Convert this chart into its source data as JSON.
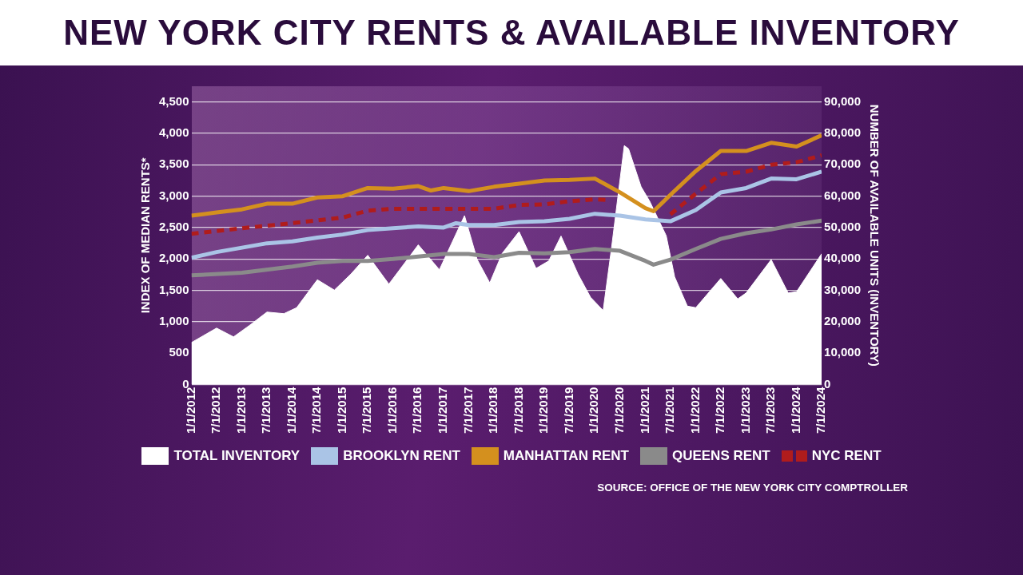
{
  "chart_data": {
    "type": "line",
    "title": "NEW YORK CITY RENTS & AVAILABLE INVENTORY",
    "ylabel": "INDEX OF MEDIAN RENTS*",
    "y2label": "NUMBER OF AVAILABLE UNITS (INVENTORY)",
    "annotations": [
      "SOURCE: OFFICE OF THE NEW YORK CITY COMPTROLLER"
    ],
    "xlim": [
      "2012-01",
      "2024-07"
    ],
    "xticks": [
      {
        "value": "2012-01",
        "label": "1/1/2012"
      },
      {
        "value": "2012-07",
        "label": "7/1/2012"
      },
      {
        "value": "2013-01",
        "label": "1/1/2013"
      },
      {
        "value": "2013-07",
        "label": "7/1/2013"
      },
      {
        "value": "2014-01",
        "label": "1/1/2014"
      },
      {
        "value": "2014-07",
        "label": "7/1/2014"
      },
      {
        "value": "2015-01",
        "label": "1/1/2015"
      },
      {
        "value": "2015-07",
        "label": "7/1/2015"
      },
      {
        "value": "2016-01",
        "label": "1/1/2016"
      },
      {
        "value": "2016-07",
        "label": "7/1/2016"
      },
      {
        "value": "2017-01",
        "label": "1/1/2017"
      },
      {
        "value": "2017-07",
        "label": "7/1/2017"
      },
      {
        "value": "2018-01",
        "label": "1/1/2018"
      },
      {
        "value": "2018-07",
        "label": "7/1/2018"
      },
      {
        "value": "2019-01",
        "label": "1/1/2019"
      },
      {
        "value": "2019-07",
        "label": "7/1/2019"
      },
      {
        "value": "2020-01",
        "label": "1/1/2020"
      },
      {
        "value": "2020-07",
        "label": "7/1/2020"
      },
      {
        "value": "2021-01",
        "label": "1/1/2021"
      },
      {
        "value": "2021-07",
        "label": "7/1/2021"
      },
      {
        "value": "2022-01",
        "label": "1/1/2022"
      },
      {
        "value": "2022-07",
        "label": "7/1/2022"
      },
      {
        "value": "2023-01",
        "label": "1/1/2023"
      },
      {
        "value": "2023-07",
        "label": "7/1/2023"
      },
      {
        "value": "2024-01",
        "label": "1/1/2024"
      },
      {
        "value": "2024-07",
        "label": "7/1/2024"
      }
    ],
    "ylim": [
      0,
      4750
    ],
    "yticks": [
      0,
      500,
      {
        "value": 1000,
        "label": "1,000"
      },
      {
        "value": 1500,
        "label": "1,500"
      },
      {
        "value": 2000,
        "label": "2,000"
      },
      {
        "value": 2500,
        "label": "2,500"
      },
      {
        "value": 3000,
        "label": "3,000"
      },
      {
        "value": 3500,
        "label": "3,500"
      },
      {
        "value": 4000,
        "label": "4,000"
      },
      {
        "value": 4500,
        "label": "4,500"
      }
    ],
    "y2lim": [
      0,
      95000
    ],
    "y2ticks": [
      0,
      {
        "value": 10000,
        "label": "10,000"
      },
      {
        "value": 20000,
        "label": "20,000"
      },
      {
        "value": 30000,
        "label": "30,000"
      },
      {
        "value": 40000,
        "label": "40,000"
      },
      {
        "value": 50000,
        "label": "50,000"
      },
      {
        "value": 60000,
        "label": "60,000"
      },
      {
        "value": 70000,
        "label": "70,000"
      },
      {
        "value": 80000,
        "label": "80,000"
      },
      {
        "value": 90000,
        "label": "90,000"
      }
    ],
    "grid": "y",
    "legend": "bottom",
    "series": [
      {
        "name": "TOTAL INVENTORY",
        "type": "area",
        "axis": "y2",
        "color": "#ffffff",
        "x": [
          "2012-01",
          "2012-07",
          "2012-11",
          "2013-03",
          "2013-07",
          "2013-11",
          "2014-02",
          "2014-07",
          "2014-11",
          "2015-03",
          "2015-07",
          "2015-12",
          "2016-07",
          "2016-12",
          "2017-06",
          "2017-09",
          "2017-12",
          "2018-03",
          "2018-07",
          "2018-11",
          "2019-02",
          "2019-05",
          "2019-09",
          "2019-12",
          "2020-03",
          "2020-05",
          "2020-08",
          "2020-09",
          "2020-12",
          "2021-02",
          "2021-06",
          "2021-08",
          "2021-11",
          "2022-01",
          "2022-07",
          "2022-11",
          "2023-01",
          "2023-07",
          "2023-11",
          "2024-01",
          "2024-07"
        ],
        "values": [
          13400,
          18000,
          15200,
          19000,
          23100,
          22600,
          24500,
          33400,
          30100,
          35200,
          41200,
          32000,
          44500,
          36600,
          53800,
          39800,
          32400,
          41800,
          48700,
          37000,
          39400,
          47300,
          35200,
          27800,
          23600,
          43600,
          76100,
          75100,
          63000,
          58400,
          47400,
          34300,
          25000,
          24500,
          33800,
          27300,
          29200,
          39800,
          29200,
          29600,
          41700
        ]
      },
      {
        "name": "BROOKLYN RENT",
        "color": "#aac4e6",
        "x": [
          "2012-01",
          "2012-07",
          "2013-01",
          "2013-07",
          "2014-01",
          "2014-07",
          "2015-01",
          "2015-07",
          "2016-01",
          "2016-07",
          "2017-01",
          "2017-04",
          "2017-07",
          "2018-01",
          "2018-07",
          "2019-01",
          "2019-07",
          "2020-01",
          "2020-07",
          "2021-01",
          "2021-07",
          "2022-01",
          "2022-07",
          "2023-01",
          "2023-07",
          "2024-01",
          "2024-07"
        ],
        "values": [
          2020,
          2110,
          2180,
          2250,
          2280,
          2340,
          2390,
          2460,
          2490,
          2520,
          2500,
          2570,
          2540,
          2540,
          2590,
          2600,
          2640,
          2720,
          2690,
          2630,
          2600,
          2780,
          3060,
          3130,
          3280,
          3270,
          3390
        ]
      },
      {
        "name": "MANHATTAN RENT",
        "color": "#d4901e",
        "x": [
          "2012-01",
          "2012-07",
          "2013-01",
          "2013-07",
          "2014-01",
          "2014-07",
          "2015-01",
          "2015-07",
          "2016-01",
          "2016-07",
          "2016-10",
          "2017-01",
          "2017-07",
          "2018-01",
          "2018-07",
          "2019-01",
          "2019-07",
          "2020-01",
          "2020-07",
          "2021-01",
          "2021-03",
          "2021-07",
          "2022-01",
          "2022-07",
          "2023-01",
          "2023-07",
          "2024-01",
          "2024-07"
        ],
        "values": [
          2690,
          2740,
          2790,
          2880,
          2880,
          2980,
          3000,
          3130,
          3120,
          3160,
          3090,
          3130,
          3080,
          3150,
          3200,
          3250,
          3260,
          3280,
          3060,
          2810,
          2760,
          3020,
          3400,
          3720,
          3720,
          3850,
          3790,
          3970
        ]
      },
      {
        "name": "QUEENS RENT",
        "color": "#8a8a8a",
        "x": [
          "2012-01",
          "2013-01",
          "2014-01",
          "2014-07",
          "2015-01",
          "2015-07",
          "2016-01",
          "2016-07",
          "2017-01",
          "2017-07",
          "2018-01",
          "2018-07",
          "2019-01",
          "2019-07",
          "2020-01",
          "2020-07",
          "2021-01",
          "2021-03",
          "2021-07",
          "2022-01",
          "2022-07",
          "2023-01",
          "2023-07",
          "2024-01",
          "2024-07"
        ],
        "values": [
          1740,
          1780,
          1880,
          1940,
          1970,
          1970,
          2000,
          2040,
          2080,
          2080,
          2030,
          2100,
          2090,
          2110,
          2160,
          2130,
          1970,
          1910,
          1990,
          2160,
          2320,
          2410,
          2470,
          2550,
          2610
        ]
      },
      {
        "name": "NYC RENT",
        "line_style": "dashed",
        "color": "#b01c1c",
        "x": [
          "2012-01",
          "2013-01",
          "2014-01",
          "2015-01",
          "2015-07",
          "2016-01",
          "2018-01",
          "2018-07",
          "2019-01",
          "2019-07",
          "2020-01",
          "2020-04",
          "2020-07",
          "2021-01",
          "2021-07",
          "2022-01",
          "2022-07",
          "2023-01",
          "2023-07",
          "2024-01",
          "2024-07"
        ],
        "values": [
          2400,
          2490,
          2570,
          2660,
          2770,
          2800,
          2800,
          2860,
          2870,
          2920,
          2950,
          2940,
          null,
          null,
          2710,
          3040,
          3350,
          3390,
          3500,
          3540,
          3650
        ]
      }
    ]
  }
}
